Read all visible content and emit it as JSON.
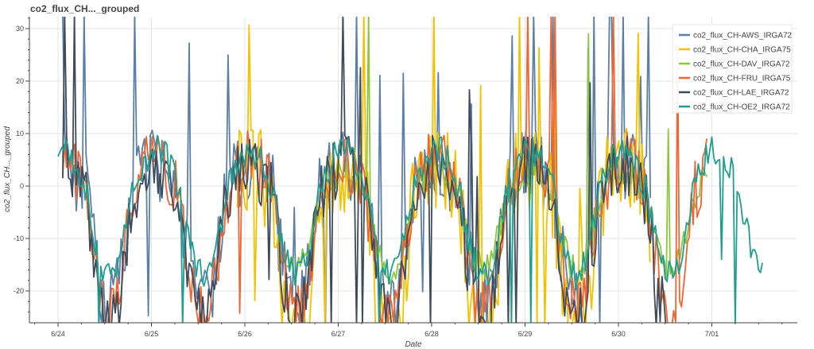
{
  "chart_data": {
    "type": "line",
    "title": "co2_flux_CH..._grouped",
    "xlabel": "Date",
    "ylabel": "co2_flux_CH..._grouped",
    "x_ticks": [
      "6/24",
      "6/25",
      "6/26",
      "6/27",
      "6/28",
      "6/29",
      "6/30",
      "7/01"
    ],
    "y_ticks": [
      30,
      20,
      10,
      0,
      -10,
      -20
    ],
    "xlim": [
      "2023-06-23 16:00",
      "2023-07-01 20:00"
    ],
    "ylim": [
      -26,
      32.5
    ],
    "grid": true,
    "legend_position": "top-right",
    "series": [
      {
        "name": "co2_flux_CH-AWS_IRGA72",
        "color": "#5b7fa6"
      },
      {
        "name": "co2_flux_CH-CHA_IRGA75",
        "color": "#f2c200"
      },
      {
        "name": "co2_flux_CH-DAV_IRGA72",
        "color": "#8cc63f"
      },
      {
        "name": "co2_flux_CH-FRU_IRGA75",
        "color": "#f26430"
      },
      {
        "name": "co2_flux_CH-LAE_IRGA72",
        "color": "#3f4a5a"
      },
      {
        "name": "co2_flux_CH-OE2_IRGA72",
        "color": "#1e9e8e"
      }
    ]
  }
}
